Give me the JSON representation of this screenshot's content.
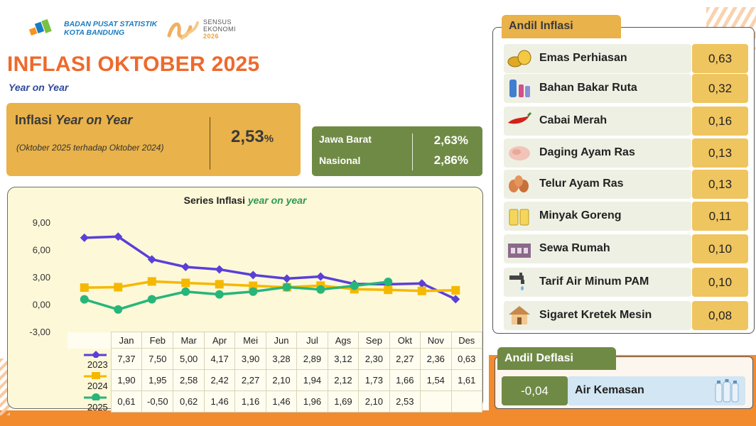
{
  "header": {
    "org_line1": "BADAN PUSAT STATISTIK",
    "org_line2": "KOTA BANDUNG",
    "sensus_line1": "SENSUS",
    "sensus_line2": "EKONOMI",
    "sensus_year": "2026",
    "title": "INFLASI OKTOBER 2025",
    "subtitle": "Year on Year"
  },
  "yoy": {
    "label_prefix": "Inflasi ",
    "label_italic": "Year on Year",
    "period": "(Oktober 2025 terhadap Oktober 2024)",
    "value": "2,53",
    "unit": "%"
  },
  "regional": [
    {
      "name": "Jawa Barat",
      "value": "2,63%"
    },
    {
      "name": "Nasional",
      "value": "2,86%"
    }
  ],
  "chart_title_prefix": "Series Inflasi ",
  "chart_title_italic": "year on year",
  "chart_data": {
    "type": "line",
    "title": "Series Inflasi year on year",
    "categories": [
      "Jan",
      "Feb",
      "Mar",
      "Apr",
      "Mei",
      "Jun",
      "Jul",
      "Ags",
      "Sep",
      "Okt",
      "Nov",
      "Des"
    ],
    "y_ticks": [
      "9,00",
      "6,00",
      "3,00",
      "0,00",
      "-3,00"
    ],
    "ylim": [
      -3,
      9
    ],
    "grid": false,
    "series": [
      {
        "name": "2023",
        "color": "#5a3fd8",
        "marker": "diamond",
        "values": [
          7.37,
          7.5,
          5.0,
          4.17,
          3.9,
          3.28,
          2.89,
          3.12,
          2.3,
          2.27,
          2.36,
          0.63
        ],
        "labels": [
          "7,37",
          "7,50",
          "5,00",
          "4,17",
          "3,90",
          "3,28",
          "2,89",
          "3,12",
          "2,30",
          "2,27",
          "2,36",
          "0,63"
        ]
      },
      {
        "name": "2024",
        "color": "#f5b800",
        "marker": "square",
        "values": [
          1.9,
          1.95,
          2.58,
          2.42,
          2.27,
          2.1,
          1.94,
          2.12,
          1.73,
          1.66,
          1.54,
          1.61
        ],
        "labels": [
          "1,90",
          "1,95",
          "2,58",
          "2,42",
          "2,27",
          "2,10",
          "1,94",
          "2,12",
          "1,73",
          "1,66",
          "1,54",
          "1,61"
        ]
      },
      {
        "name": "2025",
        "color": "#27b57a",
        "marker": "circle",
        "values": [
          0.61,
          -0.5,
          0.62,
          1.46,
          1.16,
          1.46,
          1.96,
          1.69,
          2.1,
          2.53,
          null,
          null
        ],
        "labels": [
          "0,61",
          "-0,50",
          "0,62",
          "1,46",
          "1,16",
          "1,46",
          "1,96",
          "1,69",
          "2,10",
          "2,53",
          "",
          ""
        ]
      }
    ]
  },
  "andil_inflasi": {
    "title": "Andil Inflasi",
    "items": [
      {
        "name": "Emas Perhiasan",
        "value": "0,63",
        "icon": "gold-icon"
      },
      {
        "name": "Bahan Bakar Ruta",
        "value": "0,32",
        "icon": "gas-cylinder-icon"
      },
      {
        "name": "Cabai Merah",
        "value": "0,16",
        "icon": "chili-icon"
      },
      {
        "name": "Daging Ayam Ras",
        "value": "0,13",
        "icon": "chicken-meat-icon"
      },
      {
        "name": "Telur Ayam Ras",
        "value": "0,13",
        "icon": "egg-icon"
      },
      {
        "name": "Minyak Goreng",
        "value": "0,11",
        "icon": "cooking-oil-icon"
      },
      {
        "name": "Sewa Rumah",
        "value": "0,10",
        "icon": "rent-house-icon"
      },
      {
        "name": "Tarif Air Minum PAM",
        "value": "0,10",
        "icon": "water-tap-icon"
      },
      {
        "name": "Sigaret Kretek Mesin",
        "value": "0,08",
        "icon": "house-icon"
      }
    ]
  },
  "andil_deflasi": {
    "title": "Andil Deflasi",
    "value": "-0,04",
    "name": "Air Kemasan",
    "icon": "water-bottle-icon"
  }
}
